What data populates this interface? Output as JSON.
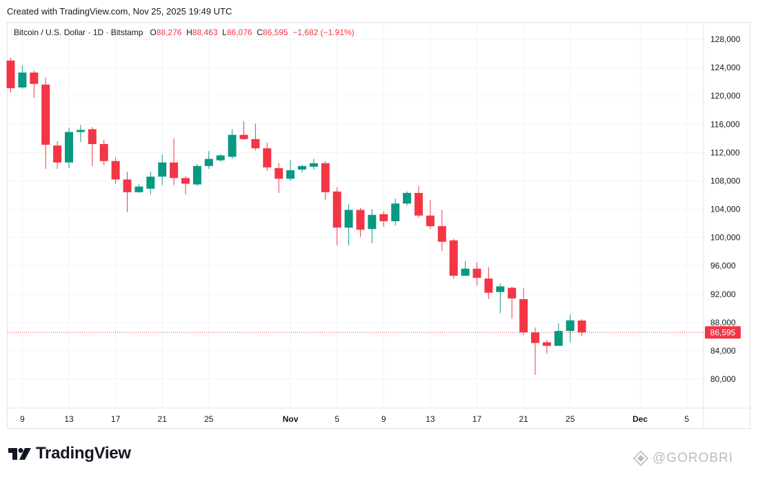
{
  "header": {
    "created": "Created with TradingView.com, Nov 25, 2025 19:49 UTC"
  },
  "legend": {
    "symbol": "Bitcoin / U.S. Dollar · 1D · Bitstamp",
    "open_label": "O",
    "open": "88,276",
    "high_label": "H",
    "high": "88,463",
    "low_label": "L",
    "low": "86,076",
    "close_label": "C",
    "close": "86,595",
    "change": "−1,682 (−1.91%)"
  },
  "last_price_tag": "86,595",
  "brand": {
    "name": "TradingView"
  },
  "watermark": {
    "text": "@GOROBRI"
  },
  "colors": {
    "up": "#089981",
    "down": "#f23645",
    "grid": "#f0f3fa",
    "axis_text": "#131722"
  },
  "chart_data": {
    "type": "candlestick",
    "title": "Bitcoin / U.S. Dollar · 1D · Bitstamp",
    "x_ticks": [
      {
        "label": "9",
        "day": 1
      },
      {
        "label": "13",
        "day": 5
      },
      {
        "label": "17",
        "day": 9
      },
      {
        "label": "21",
        "day": 13
      },
      {
        "label": "25",
        "day": 17
      },
      {
        "label": "Nov",
        "day": 24,
        "bold": true
      },
      {
        "label": "5",
        "day": 28
      },
      {
        "label": "9",
        "day": 32
      },
      {
        "label": "13",
        "day": 36
      },
      {
        "label": "17",
        "day": 40
      },
      {
        "label": "21",
        "day": 44
      },
      {
        "label": "25",
        "day": 48
      },
      {
        "label": "Dec",
        "day": 54,
        "bold": true
      },
      {
        "label": "5",
        "day": 58
      }
    ],
    "y_ticks": [
      80000,
      84000,
      88000,
      92000,
      96000,
      100000,
      104000,
      108000,
      112000,
      116000,
      120000,
      124000,
      128000
    ],
    "y_tick_labels": [
      "80,000",
      "84,000",
      "88,000",
      "92,000",
      "96,000",
      "100,000",
      "104,000",
      "108,000",
      "112,000",
      "116,000",
      "120,000",
      "124,000",
      "128,000"
    ],
    "ylim": [
      76000,
      130000
    ],
    "xlim": [
      -1,
      60
    ],
    "last_price": 86595,
    "candles": [
      {
        "d": 0,
        "o": 125000,
        "h": 125400,
        "l": 120500,
        "c": 121100
      },
      {
        "d": 1,
        "o": 121200,
        "h": 124300,
        "l": 121000,
        "c": 123300
      },
      {
        "d": 2,
        "o": 123300,
        "h": 123600,
        "l": 119700,
        "c": 121700
      },
      {
        "d": 3,
        "o": 121600,
        "h": 122600,
        "l": 109700,
        "c": 113100
      },
      {
        "d": 4,
        "o": 113000,
        "h": 113600,
        "l": 109700,
        "c": 110600
      },
      {
        "d": 5,
        "o": 110600,
        "h": 115500,
        "l": 109800,
        "c": 114900
      },
      {
        "d": 6,
        "o": 114900,
        "h": 115900,
        "l": 113500,
        "c": 115200
      },
      {
        "d": 7,
        "o": 115300,
        "h": 115600,
        "l": 110100,
        "c": 113200
      },
      {
        "d": 8,
        "o": 113200,
        "h": 113800,
        "l": 110200,
        "c": 110800
      },
      {
        "d": 9,
        "o": 110800,
        "h": 111300,
        "l": 107600,
        "c": 108200
      },
      {
        "d": 10,
        "o": 108200,
        "h": 109300,
        "l": 103600,
        "c": 106400
      },
      {
        "d": 11,
        "o": 106400,
        "h": 107500,
        "l": 106300,
        "c": 107200
      },
      {
        "d": 12,
        "o": 106900,
        "h": 109300,
        "l": 106100,
        "c": 108600
      },
      {
        "d": 13,
        "o": 108600,
        "h": 111700,
        "l": 107400,
        "c": 110600
      },
      {
        "d": 14,
        "o": 110600,
        "h": 114000,
        "l": 107400,
        "c": 108400
      },
      {
        "d": 15,
        "o": 108400,
        "h": 108700,
        "l": 106100,
        "c": 107600
      },
      {
        "d": 16,
        "o": 107500,
        "h": 110400,
        "l": 107300,
        "c": 110100
      },
      {
        "d": 17,
        "o": 110100,
        "h": 112200,
        "l": 109700,
        "c": 111100
      },
      {
        "d": 18,
        "o": 110900,
        "h": 111800,
        "l": 110700,
        "c": 111600
      },
      {
        "d": 19,
        "o": 111400,
        "h": 115300,
        "l": 111100,
        "c": 114500
      },
      {
        "d": 20,
        "o": 114500,
        "h": 116400,
        "l": 113800,
        "c": 113900
      },
      {
        "d": 21,
        "o": 113900,
        "h": 116100,
        "l": 112300,
        "c": 112600
      },
      {
        "d": 22,
        "o": 112600,
        "h": 113400,
        "l": 109400,
        "c": 109900
      },
      {
        "d": 23,
        "o": 109800,
        "h": 110500,
        "l": 106300,
        "c": 108300
      },
      {
        "d": 24,
        "o": 108300,
        "h": 110900,
        "l": 108000,
        "c": 109500
      },
      {
        "d": 25,
        "o": 109600,
        "h": 110300,
        "l": 109200,
        "c": 110100
      },
      {
        "d": 26,
        "o": 110000,
        "h": 111100,
        "l": 109600,
        "c": 110500
      },
      {
        "d": 27,
        "o": 110500,
        "h": 110800,
        "l": 105300,
        "c": 106400
      },
      {
        "d": 28,
        "o": 106500,
        "h": 107100,
        "l": 98900,
        "c": 101400
      },
      {
        "d": 29,
        "o": 101400,
        "h": 104700,
        "l": 98900,
        "c": 103900
      },
      {
        "d": 30,
        "o": 103900,
        "h": 104200,
        "l": 100100,
        "c": 101100
      },
      {
        "d": 31,
        "o": 101200,
        "h": 104000,
        "l": 99200,
        "c": 103200
      },
      {
        "d": 32,
        "o": 103300,
        "h": 103700,
        "l": 101500,
        "c": 102300
      },
      {
        "d": 33,
        "o": 102300,
        "h": 105500,
        "l": 101700,
        "c": 104800
      },
      {
        "d": 34,
        "o": 104800,
        "h": 106500,
        "l": 104500,
        "c": 106300
      },
      {
        "d": 35,
        "o": 106300,
        "h": 107300,
        "l": 102800,
        "c": 103100
      },
      {
        "d": 36,
        "o": 103100,
        "h": 105300,
        "l": 101200,
        "c": 101600
      },
      {
        "d": 37,
        "o": 101600,
        "h": 103900,
        "l": 98100,
        "c": 99400
      },
      {
        "d": 38,
        "o": 99600,
        "h": 99800,
        "l": 94200,
        "c": 94600
      },
      {
        "d": 39,
        "o": 94600,
        "h": 96700,
        "l": 94600,
        "c": 95600
      },
      {
        "d": 40,
        "o": 95600,
        "h": 96500,
        "l": 93200,
        "c": 94300
      },
      {
        "d": 41,
        "o": 94200,
        "h": 95800,
        "l": 91300,
        "c": 92200
      },
      {
        "d": 42,
        "o": 92300,
        "h": 93500,
        "l": 89300,
        "c": 93100
      },
      {
        "d": 43,
        "o": 92900,
        "h": 93100,
        "l": 88500,
        "c": 91400
      },
      {
        "d": 44,
        "o": 91300,
        "h": 92900,
        "l": 86200,
        "c": 86600
      },
      {
        "d": 45,
        "o": 86600,
        "h": 87300,
        "l": 80600,
        "c": 85100
      },
      {
        "d": 46,
        "o": 85200,
        "h": 85500,
        "l": 83600,
        "c": 84700
      },
      {
        "d": 47,
        "o": 84700,
        "h": 87900,
        "l": 84700,
        "c": 86800
      },
      {
        "d": 48,
        "o": 86800,
        "h": 89100,
        "l": 85200,
        "c": 88300
      },
      {
        "d": 49,
        "o": 88276,
        "h": 88463,
        "l": 86076,
        "c": 86595
      }
    ]
  }
}
